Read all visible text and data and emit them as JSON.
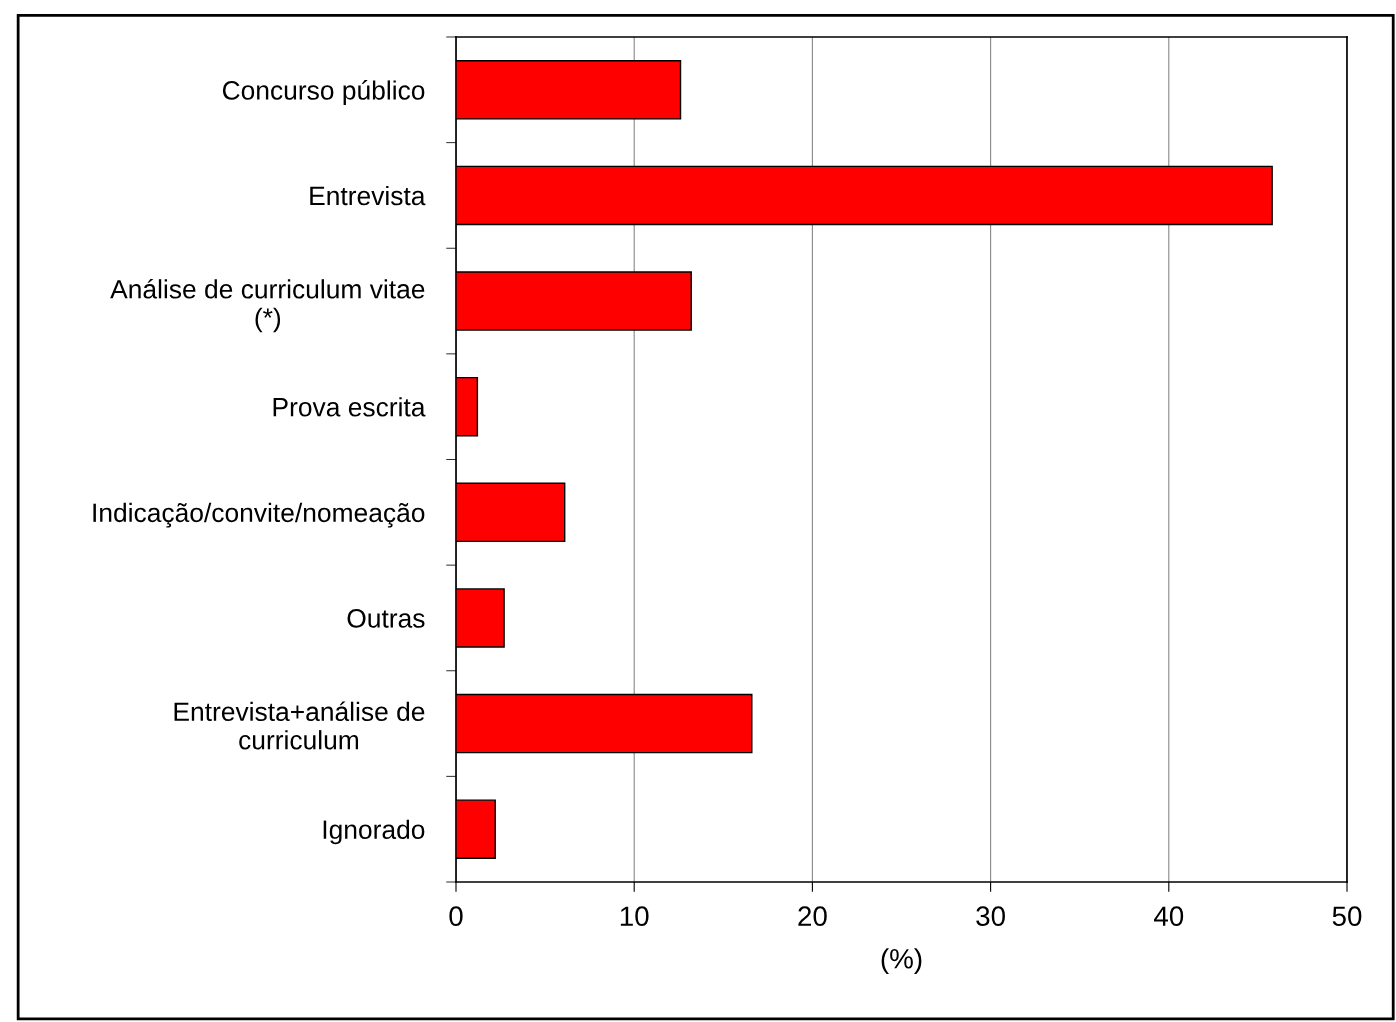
{
  "chart_data": {
    "type": "bar",
    "orientation": "horizontal",
    "xlabel": "(%)",
    "categories": [
      "Concurso público",
      "Entrevista",
      "Análise de curriculum vitae\n(*)",
      "Prova escrita",
      "Indicação/convite/nomeação",
      "Outras",
      "Entrevista+análise de\ncurriculum",
      "Ignorado"
    ],
    "values": [
      12.6,
      45.8,
      13.2,
      1.2,
      6.1,
      2.7,
      16.6,
      2.2
    ],
    "color": "#ff0000",
    "xlim": [
      0,
      50
    ],
    "xticks": [
      0,
      10,
      20,
      30,
      40,
      50
    ],
    "grid": "x"
  }
}
